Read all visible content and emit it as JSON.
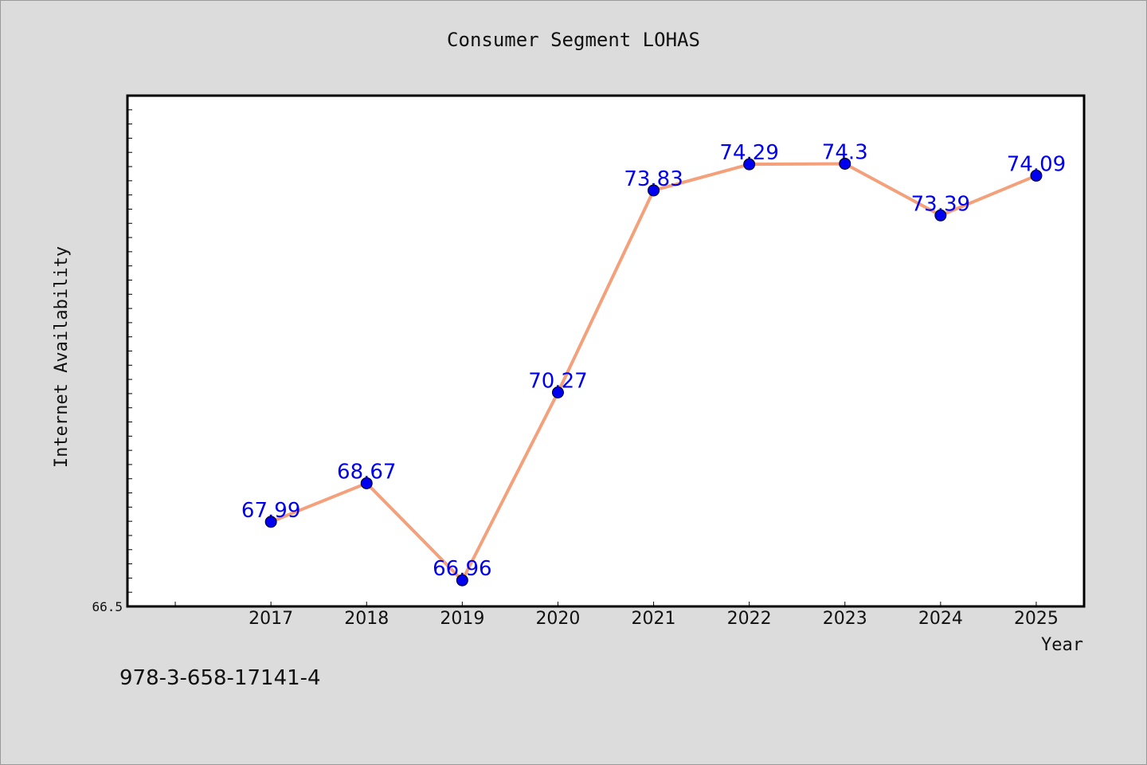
{
  "chart_data": {
    "type": "line",
    "title": "Consumer Segment LOHAS",
    "xlabel": "Year",
    "ylabel": "Internet Availability",
    "categories": [
      "2017",
      "2018",
      "2019",
      "2020",
      "2021",
      "2022",
      "2023",
      "2024",
      "2025"
    ],
    "series": [
      {
        "values": [
          67.99,
          68.67,
          66.96,
          70.27,
          73.83,
          74.29,
          74.3,
          73.39,
          74.09
        ],
        "labels": [
          "67.99",
          "68.67",
          "66.96",
          "70.27",
          "73.83",
          "74.29",
          "74.3",
          "73.39",
          "74.09"
        ],
        "line_color": "#f4a07a",
        "marker_color": "#0000ee",
        "label_color": "#0000ee"
      }
    ],
    "ylim": [
      66.5,
      75.5
    ],
    "x_range": [
      2015.5,
      2025.5
    ],
    "y_tick_labels": [
      "66.5"
    ],
    "grid": false,
    "legend": "none"
  },
  "footer": {
    "code": "978-3-658-17141-4"
  }
}
